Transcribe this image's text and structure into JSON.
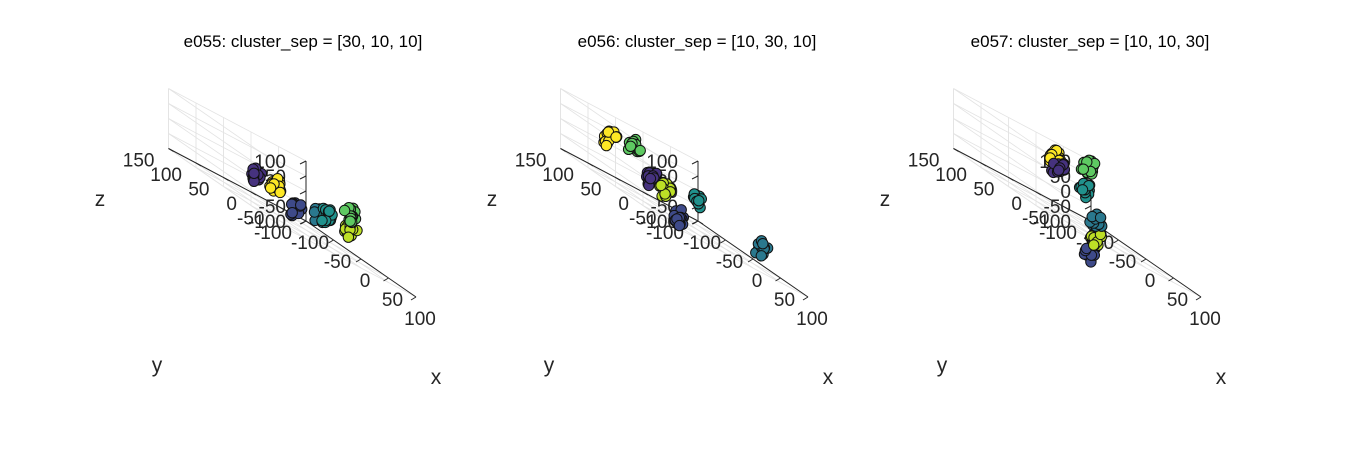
{
  "chart_data": [
    {
      "type": "scatter",
      "title": "e055: cluster_sep = [30, 10, 10]",
      "xlabel": "x",
      "ylabel": "y",
      "zlabel": "z",
      "x_ticks": [
        "-100",
        "-50",
        "0",
        "50",
        "100"
      ],
      "y_ticks": [
        "-100",
        "-50",
        "0",
        "50",
        "100",
        "150"
      ],
      "z_ticks": [
        "-100",
        "-50",
        "0",
        "50",
        "100"
      ],
      "xlim": [
        -100,
        100
      ],
      "ylim": [
        -100,
        150
      ],
      "zlim": [
        -100,
        100
      ],
      "grid": true,
      "clusters": [
        {
          "color": "#3e4a89",
          "center": [
            -100,
            -80,
            -80
          ]
        },
        {
          "color": "#46327e",
          "center": [
            -10,
            80,
            -10
          ]
        },
        {
          "color": "#fde725",
          "center": [
            25,
            80,
            0
          ]
        },
        {
          "color": "#2a788e",
          "center": [
            50,
            25,
            -10
          ]
        },
        {
          "color": "#21918c",
          "center": [
            90,
            55,
            10
          ]
        },
        {
          "color": "#bddf26",
          "center": [
            90,
            10,
            0
          ]
        },
        {
          "color": "#5ec962",
          "center": [
            115,
            35,
            60
          ]
        }
      ]
    },
    {
      "type": "scatter",
      "title": "e056: cluster_sep = [10, 30, 10]",
      "xlabel": "x",
      "ylabel": "y",
      "zlabel": "z",
      "x_ticks": [
        "-100",
        "-50",
        "0",
        "50",
        "100"
      ],
      "y_ticks": [
        "-100",
        "-50",
        "0",
        "50",
        "100",
        "150"
      ],
      "z_ticks": [
        "-100",
        "-50",
        "0",
        "50",
        "100"
      ],
      "xlim": [
        -100,
        100
      ],
      "ylim": [
        -100,
        150
      ],
      "zlim": [
        -100,
        100
      ],
      "grid": true,
      "clusters": [
        {
          "color": "#3e4a89",
          "center": [
            -25,
            10,
            -100
          ]
        },
        {
          "color": "#fde725",
          "center": [
            -45,
            115,
            35
          ]
        },
        {
          "color": "#46327e",
          "center": [
            -5,
            80,
            -10
          ]
        },
        {
          "color": "#bddf26",
          "center": [
            15,
            75,
            -20
          ]
        },
        {
          "color": "#21918c",
          "center": [
            20,
            25,
            -5
          ]
        },
        {
          "color": "#5ec962",
          "center": [
            -10,
            105,
            60
          ]
        },
        {
          "color": "#2a788e",
          "center": [
            80,
            -35,
            -25
          ]
        }
      ]
    },
    {
      "type": "scatter",
      "title": "e057: cluster_sep = [10, 10, 30]",
      "xlabel": "x",
      "ylabel": "y",
      "zlabel": "z",
      "x_ticks": [
        "-100",
        "-50",
        "0",
        "50",
        "100"
      ],
      "y_ticks": [
        "-100",
        "-50",
        "0",
        "50",
        "100",
        "150"
      ],
      "z_ticks": [
        "-100",
        "-50",
        "0",
        "50",
        "100"
      ],
      "xlim": [
        -100,
        100
      ],
      "ylim": [
        -100,
        150
      ],
      "zlim": [
        -100,
        100
      ],
      "grid": true,
      "clusters": [
        {
          "color": "#3e4a89",
          "center": [
            0,
            0,
            -180
          ]
        },
        {
          "color": "#bddf26",
          "center": [
            20,
            10,
            -115
          ]
        },
        {
          "color": "#2a788e",
          "center": [
            25,
            15,
            -55
          ]
        },
        {
          "color": "#21918c",
          "center": [
            20,
            30,
            25
          ]
        },
        {
          "color": "#fde725",
          "center": [
            -5,
            60,
            75
          ]
        },
        {
          "color": "#46327e",
          "center": [
            -5,
            55,
            45
          ]
        },
        {
          "color": "#5ec962",
          "center": [
            35,
            40,
            115
          ]
        }
      ]
    }
  ]
}
